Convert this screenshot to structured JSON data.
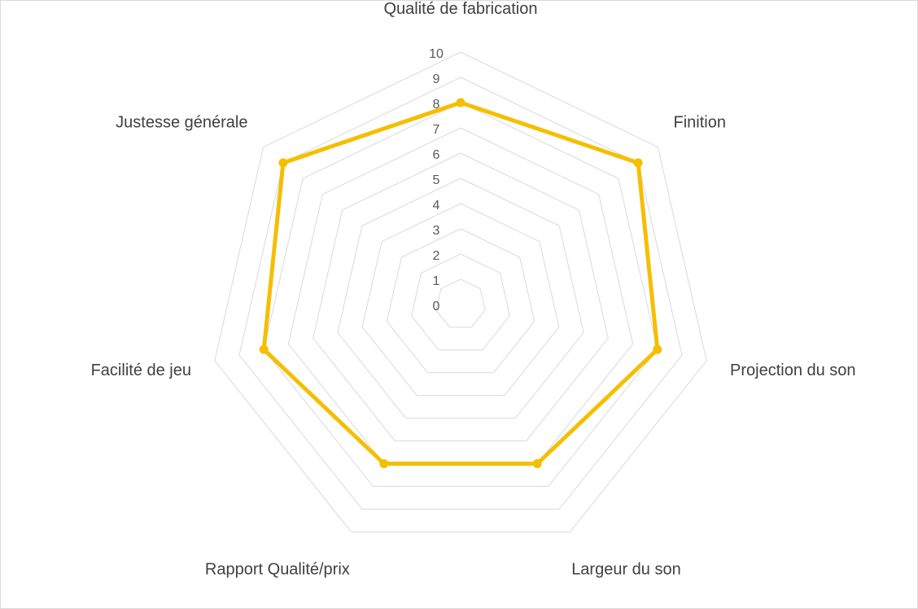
{
  "chart_data": {
    "type": "radar",
    "title": "",
    "categories": [
      "Qualité de fabrication",
      "Finition",
      "Projection du son",
      "Largeur du son",
      "Rapport Qualité/prix",
      "Facilité de jeu",
      "Justesse générale"
    ],
    "series": [
      {
        "values": [
          8,
          9,
          8,
          7,
          7,
          8,
          9
        ],
        "color": "#F5BE00"
      }
    ],
    "r_ticks": [
      "0",
      "1",
      "2",
      "3",
      "4",
      "5",
      "6",
      "7",
      "8",
      "9",
      "10"
    ],
    "rlim": [
      0,
      10
    ],
    "grid": true,
    "legend": "none",
    "colors": {
      "grid": "#D9D9D9",
      "text": "#404040",
      "series": "#F5BE00"
    }
  }
}
